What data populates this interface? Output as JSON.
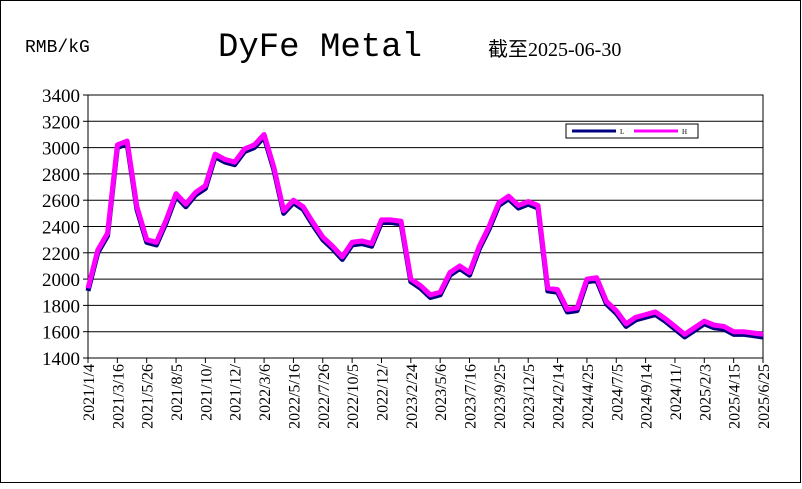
{
  "chart_data": {
    "type": "line",
    "title": "DyFe Metal",
    "subtitle": "截至2025-06-30",
    "y_label": "RMB/kG",
    "categories": [
      "2021/1/4",
      null,
      null,
      "2021/3/16",
      null,
      null,
      "2021/5/26",
      null,
      null,
      "2021/8/5",
      null,
      null,
      "2021/10/",
      null,
      null,
      "2021/12/",
      null,
      null,
      "2022/3/6",
      null,
      null,
      "2022/5/16",
      null,
      null,
      "2022/7/26",
      null,
      null,
      "2022/10/5",
      null,
      null,
      "2022/12/",
      null,
      null,
      "2023/2/24",
      null,
      null,
      "2023/5/6",
      null,
      null,
      "2023/7/16",
      null,
      null,
      "2023/9/25",
      null,
      null,
      "2023/12/5",
      null,
      null,
      "2024/2/14",
      null,
      null,
      "2024/4/25",
      null,
      null,
      "2024/7/5",
      null,
      null,
      "2024/9/14",
      null,
      null,
      "2024/11/",
      null,
      null,
      "2025/2/3",
      null,
      null,
      "2025/4/15",
      null,
      null,
      "2025/6/25"
    ],
    "series": [
      {
        "name": "L",
        "color": "#000080",
        "values": [
          1910,
          2200,
          2330,
          3000,
          3030,
          2530,
          2280,
          2260,
          2430,
          2630,
          2550,
          2640,
          2690,
          2930,
          2890,
          2870,
          2970,
          3000,
          3080,
          2830,
          2500,
          2580,
          2530,
          2410,
          2300,
          2230,
          2150,
          2260,
          2270,
          2250,
          2430,
          2430,
          2420,
          1980,
          1930,
          1860,
          1880,
          2030,
          2080,
          2030,
          2230,
          2380,
          2560,
          2610,
          2540,
          2570,
          2540,
          1910,
          1900,
          1750,
          1760,
          1980,
          1990,
          1810,
          1740,
          1640,
          1690,
          1710,
          1730,
          1680,
          1620,
          1560,
          1610,
          1660,
          1630,
          1620,
          1580,
          1580,
          1570,
          1560
        ]
      },
      {
        "name": "H",
        "color": "#ff00ff",
        "values": [
          1930,
          2220,
          2350,
          3020,
          3050,
          2550,
          2300,
          2280,
          2450,
          2650,
          2570,
          2660,
          2710,
          2950,
          2910,
          2890,
          2990,
          3020,
          3100,
          2850,
          2520,
          2600,
          2550,
          2430,
          2320,
          2250,
          2170,
          2280,
          2290,
          2270,
          2450,
          2450,
          2440,
          2000,
          1950,
          1880,
          1900,
          2050,
          2100,
          2050,
          2250,
          2400,
          2580,
          2630,
          2560,
          2590,
          2560,
          1930,
          1920,
          1770,
          1780,
          2000,
          2010,
          1830,
          1760,
          1660,
          1710,
          1730,
          1750,
          1700,
          1640,
          1580,
          1630,
          1680,
          1650,
          1640,
          1600,
          1600,
          1590,
          1580
        ]
      }
    ],
    "ylim": [
      1400,
      3400
    ],
    "yticks": [
      1400,
      1600,
      1800,
      2000,
      2200,
      2400,
      2600,
      2800,
      3000,
      3200,
      3400
    ],
    "grid": true,
    "legend": "upper right"
  }
}
